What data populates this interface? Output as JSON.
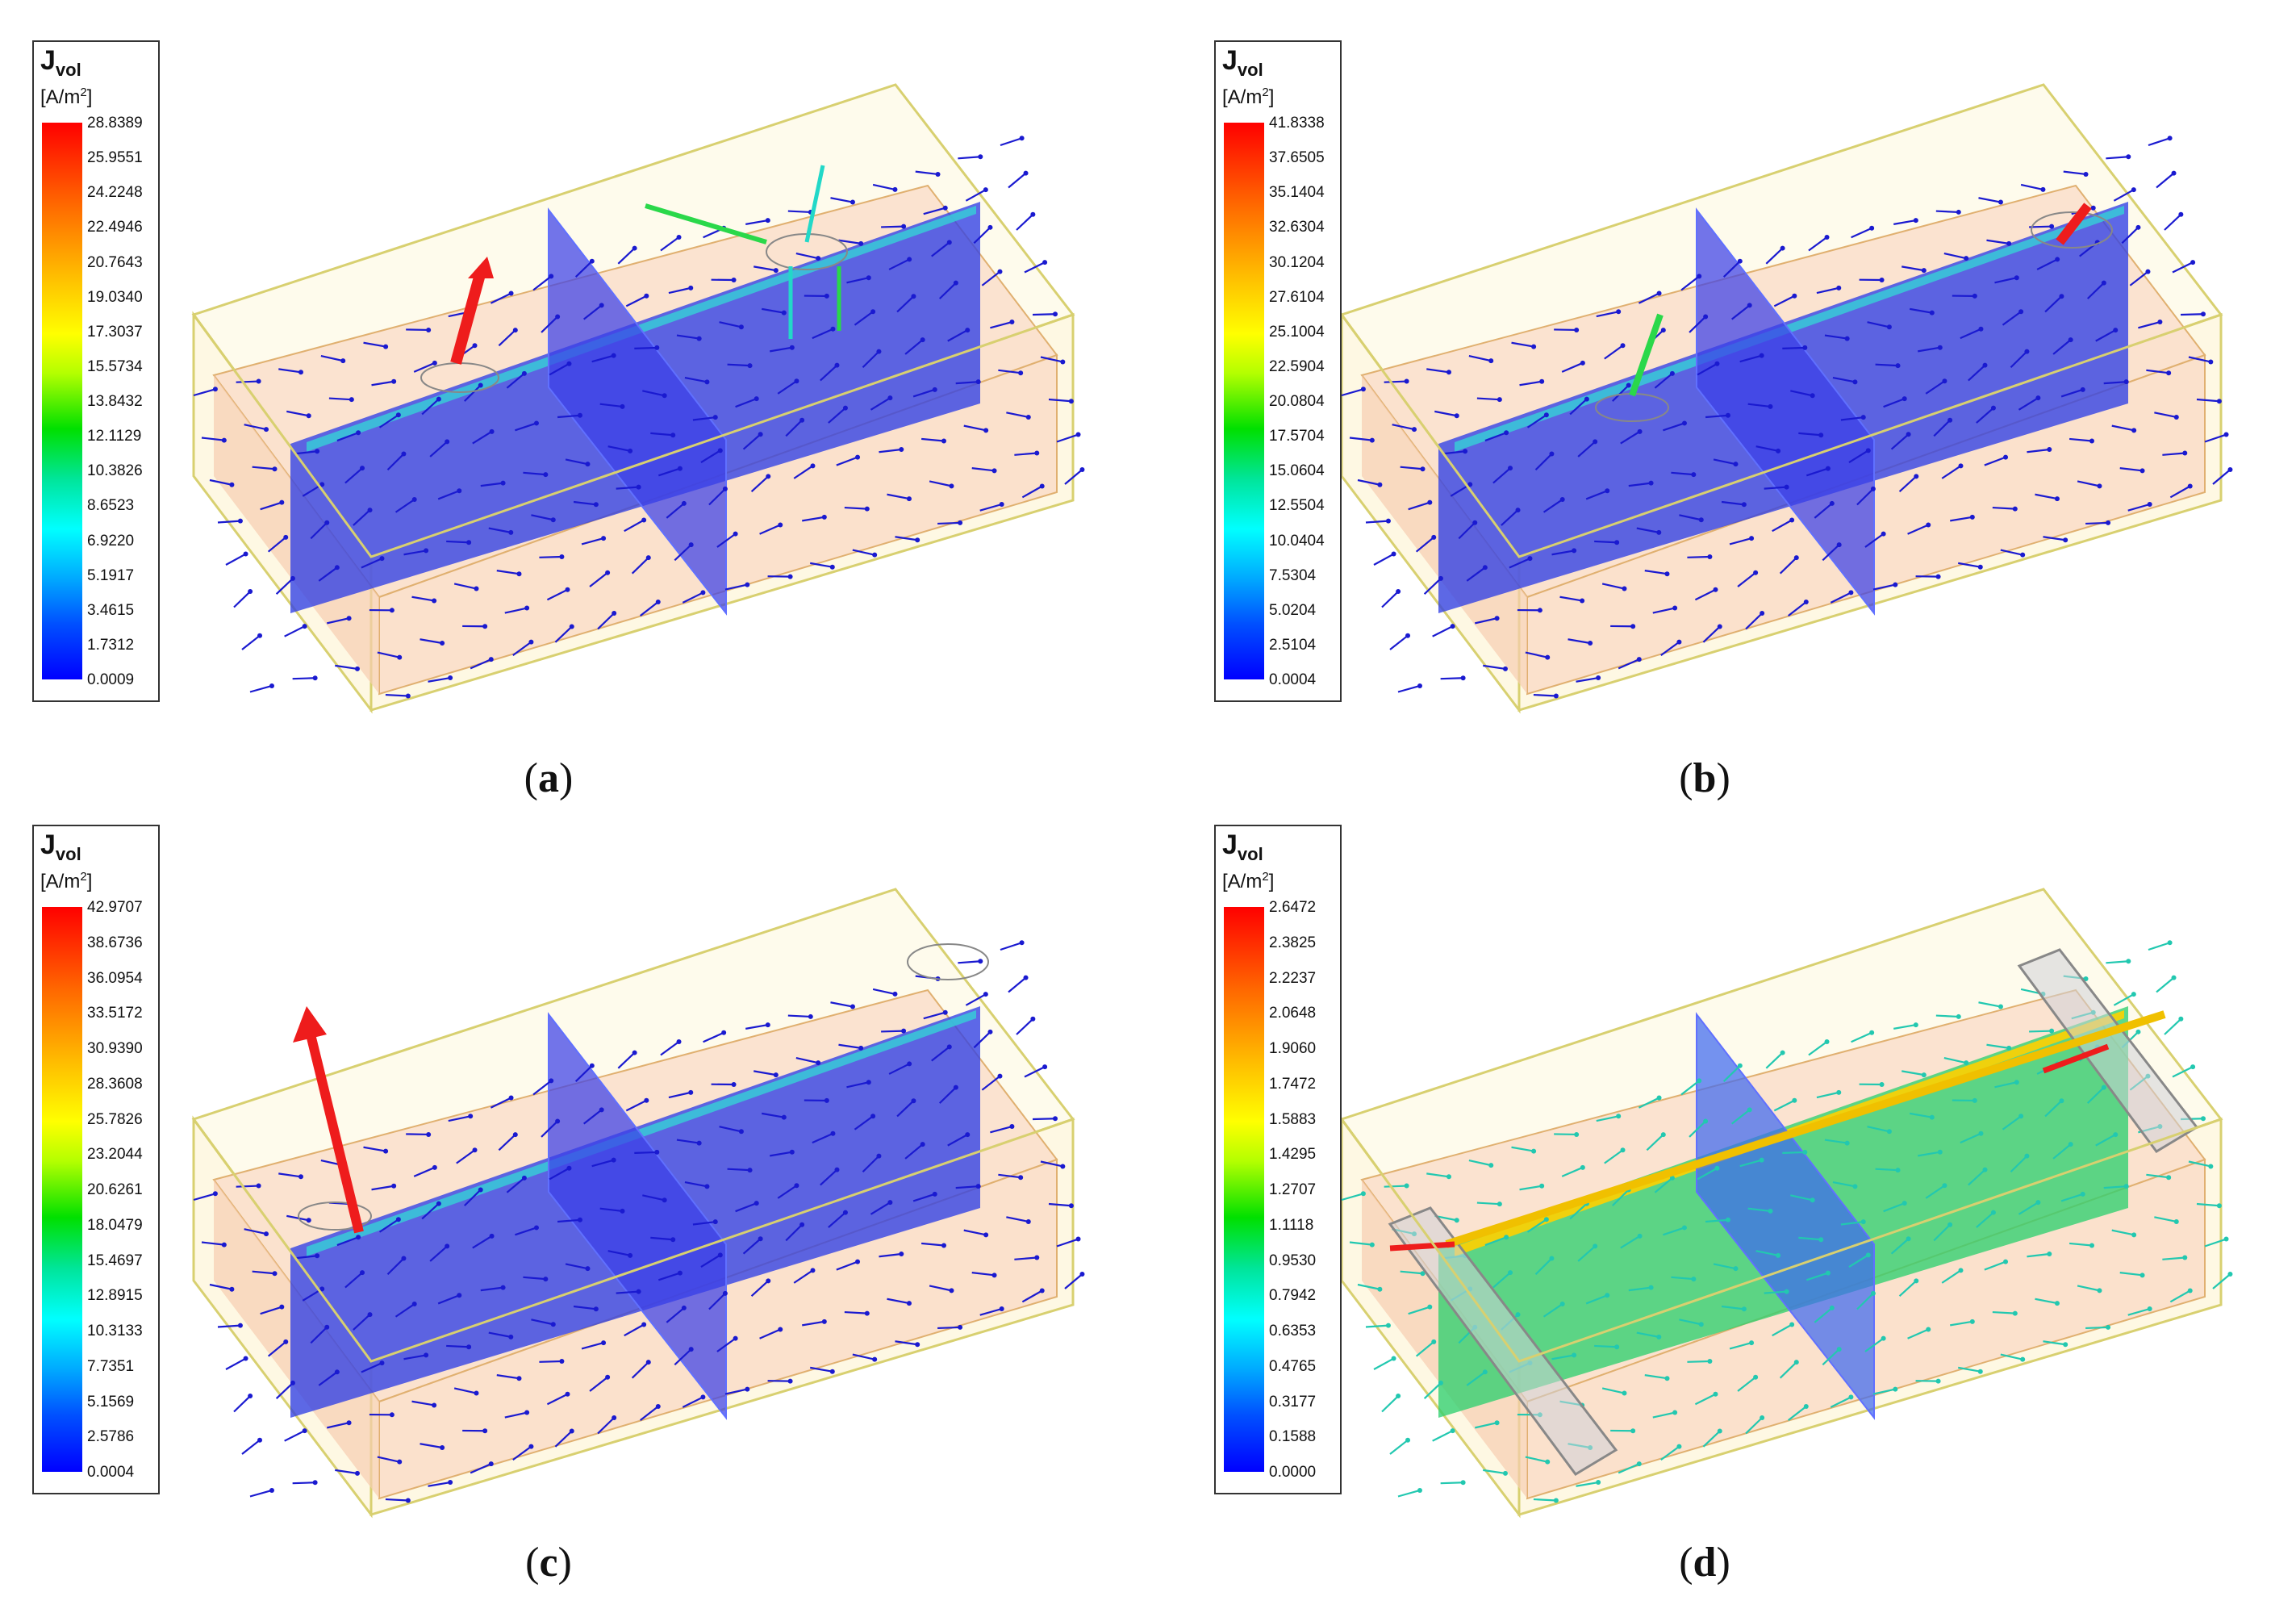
{
  "panels": [
    {
      "caption": "a",
      "legend": {
        "title": "J",
        "subscript": "vol",
        "unit": "[A/m",
        "unit_exp": "2",
        "unit_close": "]",
        "ticks": [
          "28.8389",
          "25.9551",
          "24.2248",
          "22.4946",
          "20.7643",
          "19.0340",
          "17.3037",
          "15.5734",
          "13.8432",
          "12.1129",
          "10.3826",
          "8.6523",
          "6.9220",
          "5.1917",
          "3.4615",
          "1.7312",
          "0.0009"
        ]
      }
    },
    {
      "caption": "b",
      "legend": {
        "title": "J",
        "subscript": "vol",
        "unit": "[A/m",
        "unit_exp": "2",
        "unit_close": "]",
        "ticks": [
          "41.8338",
          "37.6505",
          "35.1404",
          "32.6304",
          "30.1204",
          "27.6104",
          "25.1004",
          "22.5904",
          "20.0804",
          "17.5704",
          "15.0604",
          "12.5504",
          "10.0404",
          "7.5304",
          "5.0204",
          "2.5104",
          "0.0004"
        ]
      }
    },
    {
      "caption": "c",
      "legend": {
        "title": "J",
        "subscript": "vol",
        "unit": "[A/m",
        "unit_exp": "2",
        "unit_close": "]",
        "ticks": [
          "42.9707",
          "38.6736",
          "36.0954",
          "33.5172",
          "30.9390",
          "28.3608",
          "25.7826",
          "23.2044",
          "20.6261",
          "18.0479",
          "15.4697",
          "12.8915",
          "10.3133",
          "7.7351",
          "5.1569",
          "2.5786",
          "0.0004"
        ]
      }
    },
    {
      "caption": "d",
      "legend": {
        "title": "J",
        "subscript": "vol",
        "unit": "[A/m",
        "unit_exp": "2",
        "unit_close": "]",
        "ticks": [
          "2.6472",
          "2.3825",
          "2.2237",
          "2.0648",
          "1.9060",
          "1.7472",
          "1.5883",
          "1.4295",
          "1.2707",
          "1.1118",
          "0.9530",
          "0.7942",
          "0.6353",
          "0.4765",
          "0.3177",
          "0.1588",
          "0.0000"
        ]
      }
    }
  ],
  "colors": {
    "box_edge": "#d8d070",
    "fluid_fill": "#f9d9c4",
    "plane_blue": "#2f3fe6",
    "arrow_blue": "#1a1ad0",
    "arrow_red": "#ee1c1c",
    "arrow_green": "#2ad84a",
    "arrow_cyan": "#22d8c8",
    "plane_green": "#30d070"
  }
}
